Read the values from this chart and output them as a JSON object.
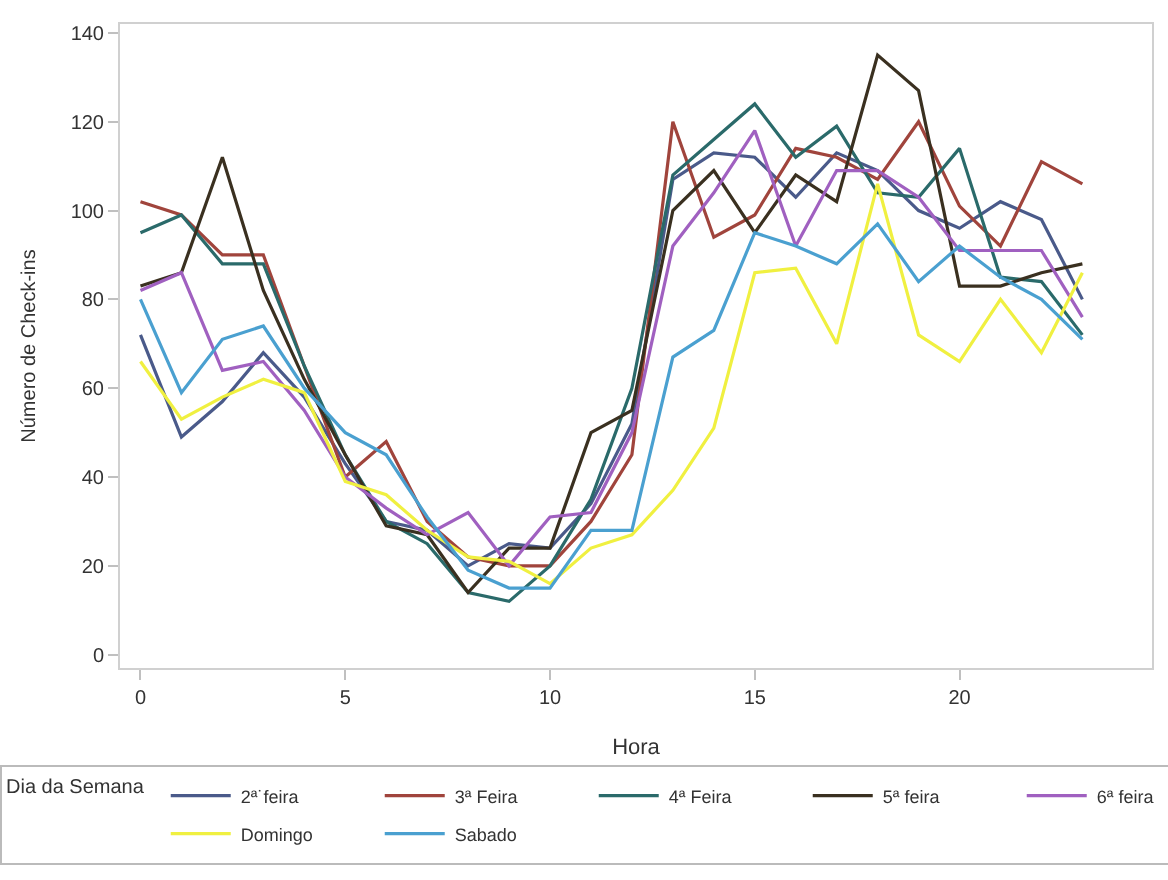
{
  "chart_data": {
    "type": "line",
    "xlabel": "Hora",
    "ylabel": "Número de Check-ins",
    "legend_title": "Dia da Semana",
    "x": [
      0,
      1,
      2,
      3,
      4,
      5,
      6,
      7,
      8,
      9,
      10,
      11,
      12,
      13,
      14,
      15,
      16,
      17,
      18,
      19,
      20,
      21,
      22,
      23
    ],
    "xlim": [
      -0.5,
      24.7
    ],
    "xticks": [
      0,
      5,
      10,
      15,
      20
    ],
    "ylim": [
      -3,
      142
    ],
    "yticks": [
      0,
      20,
      40,
      60,
      80,
      100,
      120,
      140
    ],
    "legend": "bottom",
    "marker": "none",
    "line_style": "solid",
    "series": [
      {
        "name": "2ª˙feira",
        "color": "#4a5a8a",
        "values": [
          72,
          49,
          57,
          68,
          58,
          43,
          30,
          28,
          20,
          25,
          24,
          34,
          52,
          107,
          113,
          112,
          103,
          113,
          109,
          100,
          96,
          102,
          98,
          80
        ]
      },
      {
        "name": "3ª Feira",
        "color": "#a0443c",
        "values": [
          102,
          99,
          90,
          90,
          65,
          40,
          48,
          30,
          22,
          20,
          20,
          30,
          45,
          120,
          94,
          99,
          114,
          112,
          107,
          120,
          101,
          92,
          111,
          106
        ]
      },
      {
        "name": "4ª Feira",
        "color": "#2a6a6a",
        "values": [
          95,
          99,
          88,
          88,
          65,
          45,
          30,
          25,
          14,
          12,
          20,
          35,
          60,
          108,
          116,
          124,
          112,
          119,
          104,
          103,
          114,
          85,
          84,
          72
        ]
      },
      {
        "name": "5ª feira",
        "color": "#3a3020",
        "values": [
          83,
          86,
          112,
          82,
          62,
          45,
          29,
          27,
          14,
          24,
          24,
          50,
          55,
          100,
          109,
          95,
          108,
          102,
          135,
          127,
          83,
          83,
          86,
          88
        ]
      },
      {
        "name": "6ª feira",
        "color": "#a060c0",
        "values": [
          82,
          86,
          64,
          66,
          55,
          40,
          33,
          27,
          32,
          20,
          31,
          32,
          50,
          92,
          104,
          118,
          92,
          109,
          109,
          103,
          91,
          91,
          91,
          76
        ]
      },
      {
        "name": "Domingo",
        "color": "#f0f040",
        "values": [
          66,
          53,
          58,
          62,
          59,
          39,
          36,
          28,
          22,
          21,
          16,
          24,
          27,
          37,
          51,
          86,
          87,
          70,
          106,
          72,
          66,
          80,
          68,
          86
        ]
      },
      {
        "name": "Sabado",
        "color": "#4aa0d0",
        "values": [
          80,
          59,
          71,
          74,
          60,
          50,
          45,
          31,
          19,
          15,
          15,
          28,
          28,
          67,
          73,
          95,
          92,
          88,
          97,
          84,
          92,
          85,
          80,
          71
        ]
      }
    ]
  }
}
